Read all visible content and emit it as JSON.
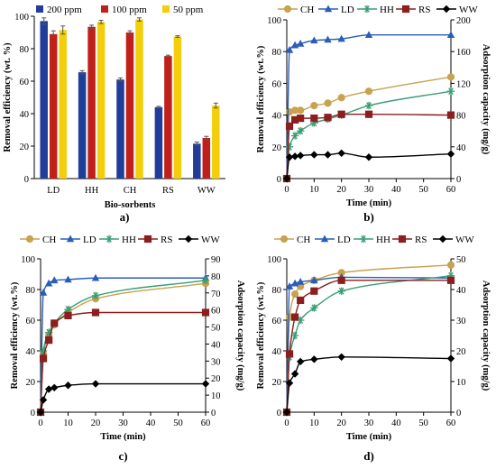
{
  "chart_data": [
    {
      "panel_label": "a)",
      "type": "bar",
      "xlabel": "Bio-sorbents",
      "ylabel": "Removal efficiency (wt. %)",
      "categories": [
        "LD",
        "HH",
        "CH",
        "RS",
        "WW"
      ],
      "ylim": [
        0,
        100
      ],
      "yticks": [
        0,
        20,
        40,
        60,
        80,
        100
      ],
      "legend_position": "top",
      "series": [
        {
          "name": "200 ppm",
          "color": "#1f3d99",
          "values": [
            97,
            65.5,
            61,
            44,
            21.5
          ],
          "errors": [
            2,
            1,
            1,
            0.5,
            1
          ]
        },
        {
          "name": "100 ppm",
          "color": "#c0201a",
          "values": [
            89,
            93.5,
            90,
            75.5,
            25
          ],
          "errors": [
            2,
            1,
            1,
            0.5,
            1
          ]
        },
        {
          "name": "50 ppm",
          "color": "#f2cf0a",
          "values": [
            91.5,
            96.5,
            98,
            87.5,
            45
          ],
          "errors": [
            2.5,
            1,
            1,
            0.5,
            1.5
          ]
        }
      ]
    },
    {
      "panel_label": "b)",
      "type": "line",
      "xlabel": "Time (min)",
      "ylabel": "Removal efficiency (wt.%)",
      "y2label": "Adsorption capacity (mg/g)",
      "xlim": [
        0,
        60
      ],
      "xticks": [
        0,
        10,
        20,
        30,
        40,
        50,
        60
      ],
      "ylim": [
        0,
        100
      ],
      "yticks": [
        0,
        20,
        40,
        60,
        80,
        100
      ],
      "y2lim": [
        0,
        200
      ],
      "y2ticks": [
        0,
        40,
        80,
        120,
        160,
        200
      ],
      "legend_position": "top",
      "series": [
        {
          "name": "CH",
          "axis": "y2",
          "color": "#c8a24e",
          "marker": "circle",
          "x": [
            0,
            1,
            3,
            5,
            10,
            15,
            20,
            30,
            60
          ],
          "y": [
            0,
            84,
            86,
            86,
            92,
            95,
            102,
            110,
            128
          ]
        },
        {
          "name": "LD",
          "axis": "y1",
          "color": "#2a5db8",
          "marker": "triangle",
          "x": [
            0,
            1,
            3,
            5,
            10,
            15,
            20,
            30,
            60
          ],
          "y": [
            0,
            81,
            84,
            85,
            87,
            87.5,
            88,
            90.5,
            90.5
          ]
        },
        {
          "name": "HH",
          "axis": "y2",
          "color": "#3a9e75",
          "marker": "asterisk",
          "x": [
            0,
            1,
            3,
            5,
            10,
            15,
            20,
            30,
            60
          ],
          "y": [
            0,
            40,
            54,
            60,
            70,
            75,
            80,
            92,
            110
          ]
        },
        {
          "name": "RS",
          "axis": "y2",
          "color": "#8b1e1e",
          "marker": "square",
          "x": [
            0,
            1,
            3,
            5,
            10,
            15,
            20,
            30,
            60
          ],
          "y": [
            0,
            66,
            74,
            76,
            76,
            77,
            81,
            81,
            80
          ]
        },
        {
          "name": "WW",
          "axis": "y2",
          "color": "#000000",
          "marker": "diamond",
          "x": [
            0,
            1,
            3,
            5,
            10,
            15,
            20,
            30,
            60
          ],
          "y": [
            0,
            27,
            28,
            29,
            30,
            30,
            32,
            27,
            31
          ]
        }
      ]
    },
    {
      "panel_label": "c)",
      "type": "line",
      "xlabel": "Time (min)",
      "ylabel": "Removal efficiency (wt.%)",
      "y2label": "Adsorption capacity (mg/g)",
      "xlim": [
        0,
        60
      ],
      "xticks": [
        0,
        10,
        20,
        30,
        40,
        50,
        60
      ],
      "ylim": [
        0,
        100
      ],
      "yticks": [
        0,
        20,
        40,
        60,
        80,
        100
      ],
      "y2lim": [
        0,
        90
      ],
      "y2ticks": [
        0,
        10,
        20,
        30,
        40,
        50,
        60,
        70,
        80,
        90
      ],
      "legend_position": "top",
      "series": [
        {
          "name": "CH",
          "axis": "y1",
          "color": "#c8a24e",
          "marker": "circle",
          "x": [
            0,
            1,
            3,
            5,
            10,
            20,
            60
          ],
          "y": [
            0,
            38,
            50,
            57,
            65,
            74,
            84
          ]
        },
        {
          "name": "LD",
          "axis": "y1",
          "color": "#2a5db8",
          "marker": "triangle",
          "x": [
            0,
            1,
            3,
            5,
            10,
            20,
            60
          ],
          "y": [
            0,
            78,
            84,
            86,
            86.5,
            87.5,
            87.5
          ]
        },
        {
          "name": "HH",
          "axis": "y1",
          "color": "#3a9e75",
          "marker": "asterisk",
          "x": [
            0,
            1,
            3,
            5,
            10,
            20,
            60
          ],
          "y": [
            0,
            40,
            52,
            58,
            67,
            76,
            86
          ]
        },
        {
          "name": "RS",
          "axis": "y1",
          "color": "#8b1e1e",
          "marker": "square",
          "x": [
            0,
            1,
            3,
            5,
            10,
            20,
            60
          ],
          "y": [
            0,
            35,
            47,
            58,
            63,
            65,
            65
          ]
        },
        {
          "name": "WW",
          "axis": "y1",
          "color": "#000000",
          "marker": "diamond",
          "x": [
            0,
            1,
            3,
            5,
            10,
            20,
            60
          ],
          "y": [
            0,
            8,
            15,
            16,
            17.5,
            18.5,
            18.5
          ]
        }
      ]
    },
    {
      "panel_label": "d)",
      "type": "line",
      "xlabel": "Time (min)",
      "ylabel": "Removal efficiency (wt.%)",
      "y2label": "Adsorption capacity (mg/g)",
      "xlim": [
        0,
        60
      ],
      "xticks": [
        0,
        10,
        20,
        30,
        40,
        50,
        60
      ],
      "ylim": [
        0,
        100
      ],
      "yticks": [
        0,
        20,
        40,
        60,
        80,
        100
      ],
      "y2lim": [
        0,
        50
      ],
      "y2ticks": [
        0,
        10,
        20,
        30,
        40,
        50
      ],
      "legend_position": "top",
      "series": [
        {
          "name": "CH",
          "axis": "y1",
          "color": "#c8a24e",
          "marker": "circle",
          "x": [
            0,
            1,
            3,
            5,
            10,
            20,
            60
          ],
          "y": [
            0,
            62,
            77,
            82,
            86,
            91,
            96
          ]
        },
        {
          "name": "LD",
          "axis": "y1",
          "color": "#2a5db8",
          "marker": "triangle",
          "x": [
            0,
            1,
            3,
            5,
            10,
            20,
            60
          ],
          "y": [
            0,
            82,
            84,
            85,
            86,
            88,
            87.5
          ]
        },
        {
          "name": "HH",
          "axis": "y1",
          "color": "#3a9e75",
          "marker": "asterisk",
          "x": [
            0,
            1,
            3,
            5,
            10,
            20,
            60
          ],
          "y": [
            0,
            36,
            50,
            60,
            68,
            79,
            89
          ]
        },
        {
          "name": "RS",
          "axis": "y1",
          "color": "#8b1e1e",
          "marker": "square",
          "x": [
            0,
            1,
            3,
            5,
            10,
            20,
            60
          ],
          "y": [
            0,
            38,
            62,
            73,
            79,
            86,
            86
          ]
        },
        {
          "name": "WW",
          "axis": "y1",
          "color": "#000000",
          "marker": "diamond",
          "x": [
            0,
            1,
            3,
            5,
            10,
            20,
            60
          ],
          "y": [
            0,
            19,
            25,
            33,
            34.5,
            36,
            35
          ]
        }
      ]
    }
  ]
}
